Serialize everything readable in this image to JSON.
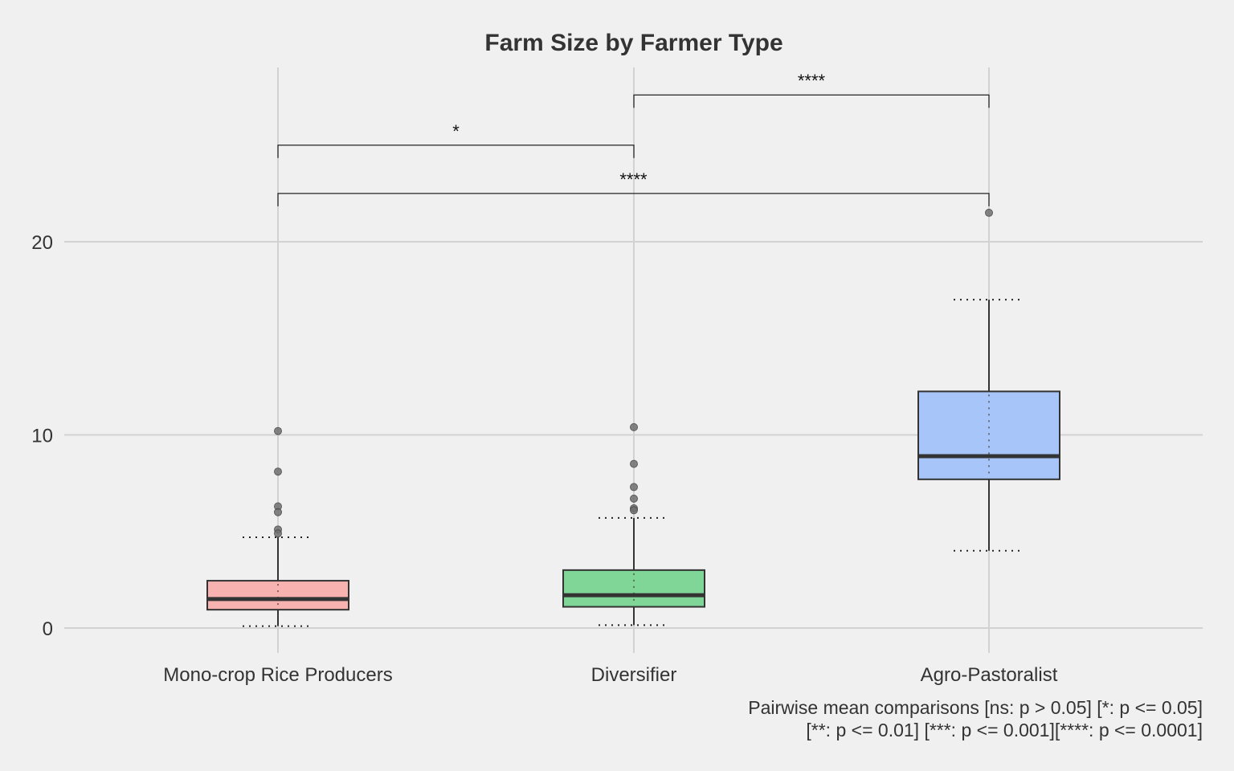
{
  "chart_data": {
    "type": "boxplot",
    "title": "Farm Size by Farmer Type",
    "xlabel": "",
    "ylabel": "",
    "ylim": [
      -1.2,
      29.0
    ],
    "yticks": [
      0,
      10,
      20
    ],
    "grid": true,
    "categories": [
      "Mono-crop Rice Producers",
      "Diversifier",
      "Agro-Pastoralist"
    ],
    "colors": [
      "#f8b3b0",
      "#7fd696",
      "#a7c5f8"
    ],
    "boxes": [
      {
        "name": "Mono-crop Rice Producers",
        "whisker_low": 0.1,
        "q1": 0.95,
        "median": 1.5,
        "q3": 2.45,
        "whisker_high": 4.7,
        "mean": 1.8,
        "outliers": [
          10.2,
          8.1,
          6.3,
          6.0,
          5.1,
          4.9
        ]
      },
      {
        "name": "Diversifier",
        "whisker_low": 0.15,
        "q1": 1.1,
        "median": 1.7,
        "q3": 3.0,
        "whisker_high": 5.7,
        "mean": 2.0,
        "outliers": [
          10.4,
          8.5,
          7.3,
          6.7,
          6.2,
          6.1
        ]
      },
      {
        "name": "Agro-Pastoralist",
        "whisker_low": 4.0,
        "q1": 7.7,
        "median": 8.9,
        "q3": 12.25,
        "whisker_high": 17.0,
        "mean": 10.0,
        "outliers": [
          21.5
        ]
      }
    ],
    "comparisons": [
      {
        "from": 0,
        "to": 1,
        "y": 25.0,
        "label": "*"
      },
      {
        "from": 1,
        "to": 2,
        "y": 27.6,
        "label": "****"
      },
      {
        "from": 0,
        "to": 2,
        "y": 22.5,
        "label": "****"
      }
    ],
    "caption_lines": [
      "Pairwise mean comparisons [ns: p > 0.05] [*: p <= 0.05]",
      "[**: p <= 0.01] [***: p <= 0.001][****: p <= 0.0001]"
    ]
  }
}
